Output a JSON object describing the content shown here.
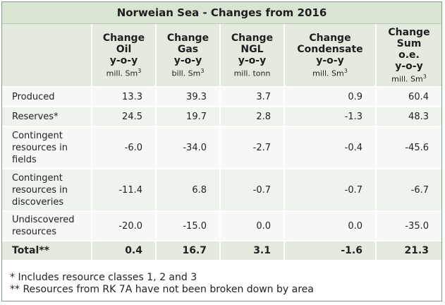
{
  "title": "Norweian Sea - Changes from 2016",
  "columns": [
    {
      "l1": "Change",
      "l2": "Oil",
      "l3": "y-o-y",
      "unit": "mill. Sm",
      "sup": "3"
    },
    {
      "l1": "Change",
      "l2": "Gas",
      "l3": "y-o-y",
      "unit": "bill. Sm",
      "sup": "3"
    },
    {
      "l1": "Change",
      "l2": "NGL",
      "l3": "y-o-y",
      "unit": "mill. tonn",
      "sup": ""
    },
    {
      "l1": "Change",
      "l2": "Condensate",
      "l3": "y-o-y",
      "unit": "mill. Sm",
      "sup": "3"
    },
    {
      "l1": "Change",
      "l2": "Sum",
      "l3": "o.e.",
      "l4": "y-o-y",
      "unit": "mill. Sm",
      "sup": "3"
    }
  ],
  "rows": [
    {
      "label": "Produced",
      "values": [
        "13.3",
        "39.3",
        "3.7",
        "0.9",
        "60.4"
      ]
    },
    {
      "label": "Reserves*",
      "values": [
        "24.5",
        "19.7",
        "2.8",
        "-1.3",
        "48.3"
      ]
    },
    {
      "label": "Contingent resources in fields",
      "values": [
        "-6.0",
        "-34.0",
        "-2.7",
        "-0.4",
        "-45.6"
      ]
    },
    {
      "label": "Contingent resources in discoveries",
      "values": [
        "-11.4",
        "6.8",
        "-0.7",
        "-0.7",
        "-6.7"
      ]
    },
    {
      "label": "Undiscovered resources",
      "values": [
        "-20.0",
        "-15.0",
        "0.0",
        "0.0",
        "-35.0"
      ]
    }
  ],
  "total": {
    "label": "Total**",
    "values": [
      "0.4",
      "16.7",
      "3.1",
      "-1.6",
      "21.3"
    ]
  },
  "notes": [
    "* Includes resource classes 1, 2 and 3",
    "** Resources from RK 7A have not been broken down by area"
  ]
}
